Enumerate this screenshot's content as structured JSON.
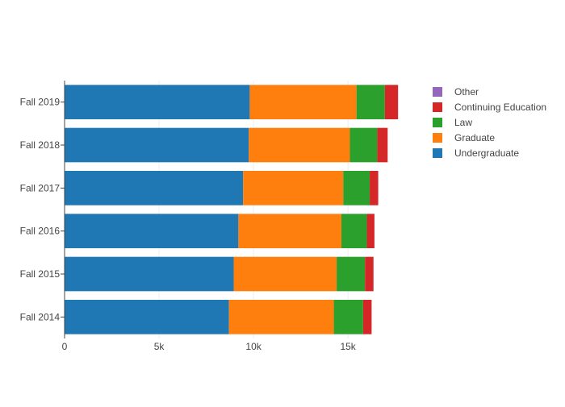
{
  "chart_data": {
    "type": "bar",
    "orientation": "horizontal",
    "barmode": "stack",
    "categories": [
      "Fall 2014",
      "Fall 2015",
      "Fall 2016",
      "Fall 2017",
      "Fall 2018",
      "Fall 2019"
    ],
    "series": [
      {
        "name": "Undergraduate",
        "color": "#1f77b4",
        "values": [
          8700,
          8950,
          9200,
          9450,
          9750,
          9800
        ]
      },
      {
        "name": "Graduate",
        "color": "#ff7f0e",
        "values": [
          5550,
          5450,
          5450,
          5300,
          5350,
          5650
        ]
      },
      {
        "name": "Law",
        "color": "#2ca02c",
        "values": [
          1550,
          1500,
          1350,
          1400,
          1450,
          1500
        ]
      },
      {
        "name": "Continuing Education",
        "color": "#d62728",
        "values": [
          450,
          450,
          400,
          450,
          550,
          700
        ]
      },
      {
        "name": "Other",
        "color": "#9467bd",
        "values": [
          0,
          0,
          0,
          0,
          0,
          0
        ]
      }
    ],
    "xlim": [
      0,
      17600
    ],
    "xticks": [
      {
        "value": 0,
        "label": "0"
      },
      {
        "value": 5000,
        "label": "5k"
      },
      {
        "value": 10000,
        "label": "10k"
      },
      {
        "value": 15000,
        "label": "15k"
      }
    ],
    "legend": {
      "position": "right",
      "order": [
        "Other",
        "Continuing Education",
        "Law",
        "Graduate",
        "Undergraduate"
      ]
    },
    "title": "",
    "xlabel": "",
    "ylabel": ""
  }
}
